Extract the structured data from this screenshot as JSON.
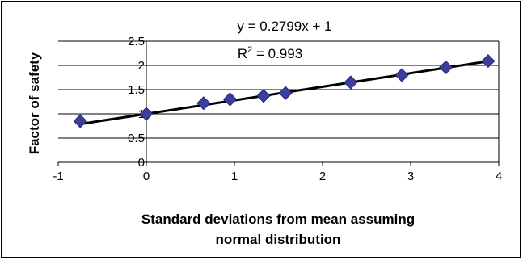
{
  "chart_data": {
    "type": "scatter",
    "title": "",
    "xlabel_lines": [
      "Standard deviations from mean assuming",
      "normal distribution"
    ],
    "ylabel": "Factor of safety",
    "xlim": [
      -1,
      4
    ],
    "ylim": [
      0,
      2.5
    ],
    "x_ticks": [
      -1,
      0,
      1,
      2,
      3,
      4
    ],
    "x_tick_labels": [
      "-1",
      "0",
      "1",
      "2",
      "3",
      "4"
    ],
    "y_ticks": [
      0,
      0.5,
      1,
      1.5,
      2,
      2.5
    ],
    "y_tick_labels": [
      "0",
      "0.5",
      "1",
      "1.5",
      "2",
      "2.5"
    ],
    "grid": "horizontal",
    "legend": "none",
    "marker_color": "#3d3d9e",
    "trendline_color": "#000000",
    "series": [
      {
        "x": [
          -0.75,
          0.0,
          0.65,
          0.95,
          1.33,
          1.58,
          2.32,
          2.9,
          3.4,
          3.88
        ],
        "y": [
          0.85,
          1.0,
          1.22,
          1.3,
          1.37,
          1.43,
          1.65,
          1.8,
          1.96,
          2.09
        ]
      }
    ],
    "trendline": {
      "slope": 0.2799,
      "intercept": 1,
      "x_range": [
        -0.75,
        3.9
      ],
      "equation_text": "y = 0.2799x + 1",
      "r2_prefix": "R",
      "r2_sup": "2",
      "r2_suffix": " = 0.993"
    }
  }
}
